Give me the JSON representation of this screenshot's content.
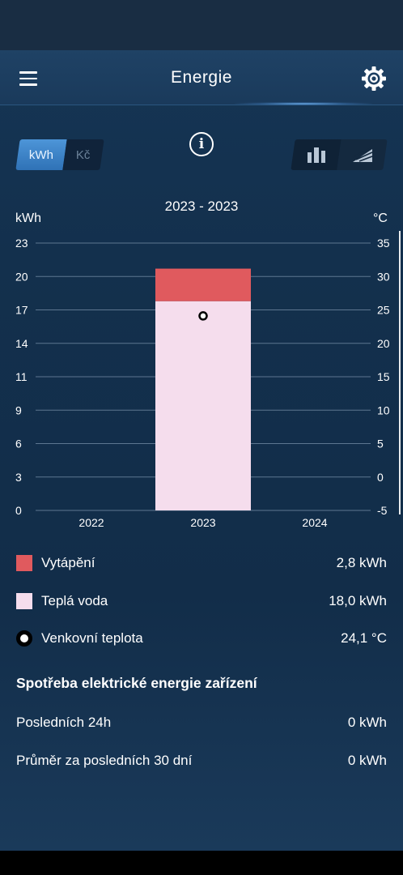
{
  "app_bar": {
    "title": "Energie",
    "menu_icon": "hamburger-menu-icon",
    "settings_icon": "gear-icon"
  },
  "toolbar": {
    "unit_options": [
      "kWh",
      "Kč"
    ],
    "selected_unit": "kWh",
    "info_icon": "info-icon",
    "view_options": [
      "bar-chart-icon",
      "area-chart-icon"
    ],
    "selected_view": "bar-chart-icon"
  },
  "chart_data": {
    "type": "bar",
    "title": "2023 - 2023",
    "ylabel": "kWh",
    "y2label": "°C",
    "categories": [
      "2022",
      "2023",
      "2024"
    ],
    "ylim": [
      0,
      23
    ],
    "y_ticks": [
      "23",
      "20",
      "17",
      "14",
      "11",
      "9",
      "6",
      "3",
      "0"
    ],
    "y2lim": [
      -5,
      35
    ],
    "y2_ticks": [
      "35",
      "30",
      "25",
      "20",
      "15",
      "10",
      "5",
      "0",
      "-5"
    ],
    "stacked": true,
    "series": [
      {
        "name": "Teplá voda",
        "values": [
          0,
          18.0,
          0
        ],
        "color": "#f5dded"
      },
      {
        "name": "Vytápění",
        "values": [
          0,
          2.8,
          0
        ],
        "color": "#e05a5e"
      }
    ],
    "temperature_series": {
      "name": "Venkovní teplota",
      "axis": "right",
      "values": [
        null,
        24.1,
        null
      ]
    },
    "grid": true
  },
  "legend": [
    {
      "label": "Vytápění",
      "value": "2,8 kWh",
      "color": "#e05a5e",
      "kind": "swatch"
    },
    {
      "label": "Teplá voda",
      "value": "18,0 kWh",
      "color": "#f5dded",
      "kind": "swatch"
    },
    {
      "label": "Venkovní teplota",
      "value": "24,1 °C",
      "kind": "dot"
    }
  ],
  "device_consumption": {
    "title": "Spotřeba elektrické energie zařízení",
    "rows": [
      {
        "label": "Posledních 24h",
        "value": "0 kWh"
      },
      {
        "label": "Průměr za posledních 30 dní",
        "value": "0 kWh"
      }
    ]
  }
}
